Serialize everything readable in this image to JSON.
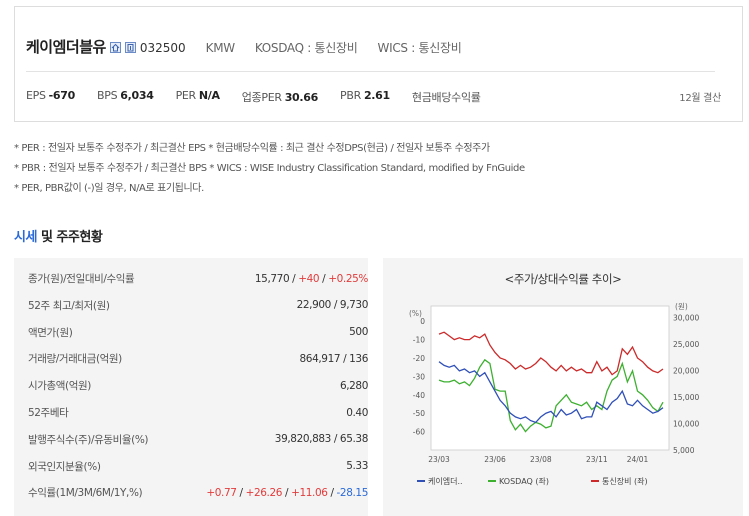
{
  "header": {
    "company": "케이엠더블유",
    "code": "032500",
    "ticker": "KMW",
    "market": "KOSDAQ : 통신장비",
    "wics": "WICS : 통신장비",
    "icons": [
      "home-icon",
      "building-icon"
    ]
  },
  "metrics": [
    {
      "label": "EPS",
      "value": "-670"
    },
    {
      "label": "BPS",
      "value": "6,034"
    },
    {
      "label": "PER",
      "value": "N/A"
    },
    {
      "label": "업종PER",
      "value": "30.66"
    },
    {
      "label": "PBR",
      "value": "2.61"
    },
    {
      "label": "현금배당수익률",
      "value": ""
    }
  ],
  "settlement": "12월 결산",
  "notes": [
    "* PER : 전일자 보통주 수정주가 / 최근결산 EPS * 현금배당수익률 : 최근 결산 수정DPS(현금) / 전일자 보통주 수정주가",
    "* PBR : 전일자 보통주 수정주가 / 최근결산 BPS * WICS : WISE Industry Classification Standard, modified by FnGuide",
    "* PER, PBR값이 (-)일 경우, N/A로 표기됩니다."
  ],
  "section": {
    "title_highlight": "시세",
    "title_rest": " 및 주주현황"
  },
  "table": [
    {
      "label": "종가(원)/전일대비/수익률",
      "parts": [
        {
          "t": "15,770",
          "c": ""
        },
        {
          "t": " / ",
          "c": ""
        },
        {
          "t": "+40",
          "c": "red"
        },
        {
          "t": " / ",
          "c": ""
        },
        {
          "t": "+0.25%",
          "c": "red"
        }
      ]
    },
    {
      "label": "52주 최고/최저(원)",
      "parts": [
        {
          "t": "22,900 / 9,730",
          "c": ""
        }
      ]
    },
    {
      "label": "액면가(원)",
      "parts": [
        {
          "t": "500",
          "c": ""
        }
      ]
    },
    {
      "label": "거래량/거래대금(억원)",
      "parts": [
        {
          "t": "864,917 / 136",
          "c": ""
        }
      ]
    },
    {
      "label": "시가총액(억원)",
      "parts": [
        {
          "t": "6,280",
          "c": ""
        }
      ]
    },
    {
      "label": "52주베타",
      "parts": [
        {
          "t": "0.40",
          "c": ""
        }
      ]
    },
    {
      "label": "발행주식수(주)/유동비율(%)",
      "parts": [
        {
          "t": "39,820,883 / 65.38",
          "c": ""
        }
      ]
    },
    {
      "label": "외국인지분율(%)",
      "parts": [
        {
          "t": "5.33",
          "c": ""
        }
      ]
    },
    {
      "label": "수익률(1M/3M/6M/1Y,%)",
      "parts": [
        {
          "t": "+0.77",
          "c": "red"
        },
        {
          "t": " / ",
          "c": ""
        },
        {
          "t": "+26.26",
          "c": "red"
        },
        {
          "t": " / ",
          "c": ""
        },
        {
          "t": "+11.06",
          "c": "red"
        },
        {
          "t": " / ",
          "c": ""
        },
        {
          "t": "-28.15",
          "c": "blue"
        }
      ]
    }
  ],
  "chart_title": "<주가/상대수익률 추이>",
  "chart_data": {
    "type": "line",
    "left_axis_label": "(%)",
    "right_axis_label": "(원)",
    "left_ylim": [
      -70,
      5
    ],
    "left_ticks": [
      "0",
      "-10",
      "-20",
      "-30",
      "-40",
      "-50",
      "-60"
    ],
    "right_ylim": [
      5000,
      31000
    ],
    "right_ticks": [
      "30,000",
      "25,000",
      "20,000",
      "15,000",
      "10,000",
      "5,000"
    ],
    "x_ticks": [
      "23/03",
      "23/06",
      "23/08",
      "23/11",
      "24/01"
    ],
    "series": [
      {
        "name": "케이엠더..",
        "color": "#3050b8",
        "axis": "left",
        "values": [
          -22,
          -24,
          -25,
          -24,
          -27,
          -26,
          -28,
          -27,
          -30,
          -28,
          -33,
          -38,
          -43,
          -46,
          -50,
          -52,
          -53,
          -52,
          -54,
          -55,
          -52,
          -50,
          -49,
          -52,
          -48,
          -51,
          -50,
          -48,
          -53,
          -52,
          -52,
          -44,
          -46,
          -48,
          -44,
          -42,
          -38,
          -45,
          -46,
          -43,
          -46,
          -48,
          -50,
          -49,
          -47
        ]
      },
      {
        "name": "KOSDAQ (좌)",
        "color": "#3db030",
        "axis": "left",
        "values": [
          -32,
          -33,
          -33,
          -32,
          -34,
          -33,
          -35,
          -31,
          -25,
          -21,
          -23,
          -37,
          -38,
          -38,
          -54,
          -59,
          -56,
          -60,
          -57,
          -55,
          -56,
          -58,
          -57,
          -46,
          -43,
          -40,
          -44,
          -45,
          -46,
          -44,
          -48,
          -46,
          -48,
          -38,
          -32,
          -30,
          -23,
          -33,
          -27,
          -38,
          -40,
          -43,
          -47,
          -49,
          -44
        ]
      },
      {
        "name": "통신장비 (좌)",
        "color": "#cc2a2a",
        "axis": "left",
        "values": [
          -7,
          -6,
          -8,
          -10,
          -9,
          -10,
          -10,
          -8,
          -9,
          -7,
          -13,
          -17,
          -20,
          -21,
          -23,
          -26,
          -24,
          -26,
          -25,
          -23,
          -20,
          -22,
          -25,
          -27,
          -24,
          -27,
          -25,
          -27,
          -26,
          -28,
          -28,
          -22,
          -27,
          -25,
          -29,
          -27,
          -15,
          -18,
          -14,
          -20,
          -22,
          -25,
          -27,
          -28,
          -26
        ]
      }
    ]
  }
}
